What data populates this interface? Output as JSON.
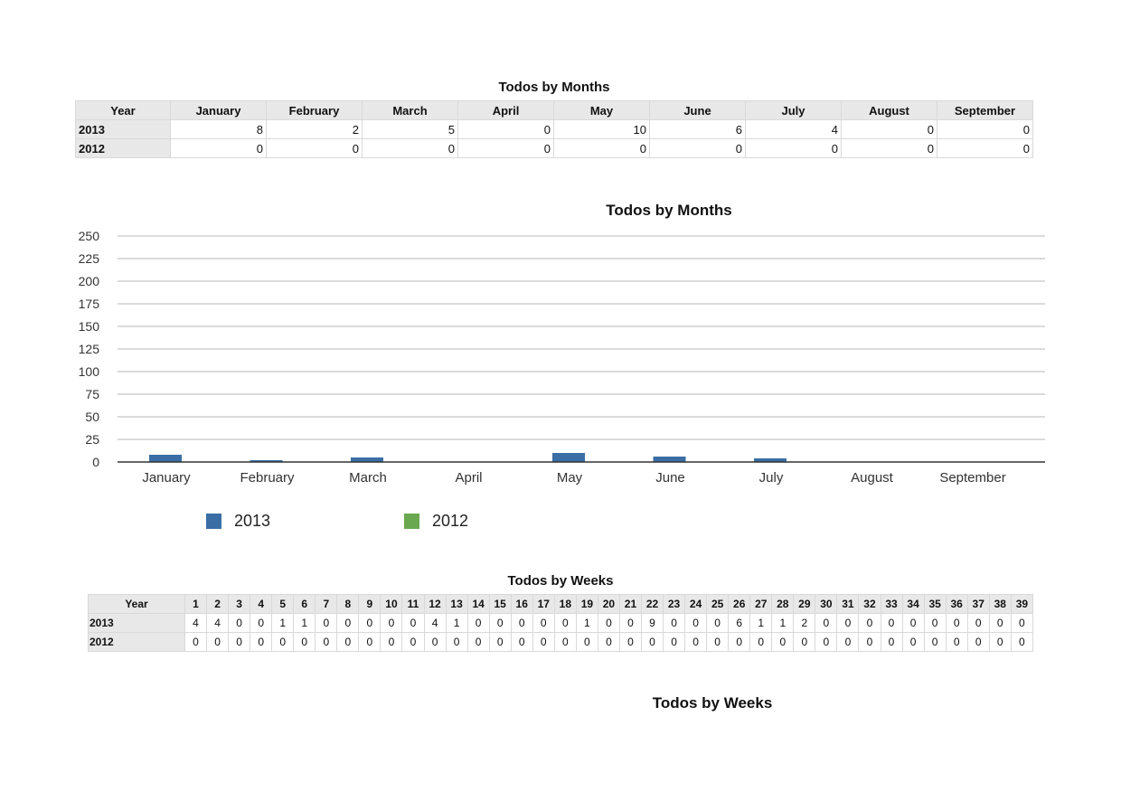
{
  "months_table": {
    "title": "Todos by Months",
    "header_label": "Year",
    "columns": [
      "January",
      "February",
      "March",
      "April",
      "May",
      "June",
      "July",
      "August",
      "September"
    ],
    "rows": [
      {
        "year": "2013",
        "values": [
          "8",
          "2",
          "5",
          "0",
          "10",
          "6",
          "4",
          "0",
          "0"
        ]
      },
      {
        "year": "2012",
        "values": [
          "0",
          "0",
          "0",
          "0",
          "0",
          "0",
          "0",
          "0",
          "0"
        ]
      }
    ]
  },
  "chart_data": {
    "type": "bar",
    "title": "Todos by Months",
    "categories": [
      "January",
      "February",
      "March",
      "April",
      "May",
      "June",
      "July",
      "August",
      "September"
    ],
    "clipped_next_category": "N",
    "series": [
      {
        "name": "2013",
        "color": "#3a6ea5",
        "values": [
          8,
          2,
          5,
          0,
          10,
          6,
          4,
          0,
          0
        ]
      },
      {
        "name": "2012",
        "color": "#6aa84f",
        "values": [
          0,
          0,
          0,
          0,
          0,
          0,
          0,
          0,
          0
        ]
      }
    ],
    "yticks": [
      "0",
      "25",
      "50",
      "75",
      "100",
      "125",
      "150",
      "175",
      "200",
      "225",
      "250"
    ],
    "ylim": [
      0,
      250
    ],
    "grid": true,
    "legend_position": "bottom-left"
  },
  "weeks_table": {
    "title": "Todos by Weeks",
    "header_label": "Year",
    "columns": [
      "1",
      "2",
      "3",
      "4",
      "5",
      "6",
      "7",
      "8",
      "9",
      "10",
      "11",
      "12",
      "13",
      "14",
      "15",
      "16",
      "17",
      "18",
      "19",
      "20",
      "21",
      "22",
      "23",
      "24",
      "25",
      "26",
      "27",
      "28",
      "29",
      "30",
      "31",
      "32",
      "33",
      "34",
      "35",
      "36",
      "37",
      "38",
      "39"
    ],
    "rows": [
      {
        "year": "2013",
        "values": [
          "4",
          "4",
          "0",
          "0",
          "1",
          "1",
          "0",
          "0",
          "0",
          "0",
          "0",
          "4",
          "1",
          "0",
          "0",
          "0",
          "0",
          "0",
          "1",
          "0",
          "0",
          "9",
          "0",
          "0",
          "0",
          "6",
          "1",
          "1",
          "2",
          "0",
          "0",
          "0",
          "0",
          "0",
          "0",
          "0",
          "0",
          "0",
          "0"
        ]
      },
      {
        "year": "2012",
        "values": [
          "0",
          "0",
          "0",
          "0",
          "0",
          "0",
          "0",
          "0",
          "0",
          "0",
          "0",
          "0",
          "0",
          "0",
          "0",
          "0",
          "0",
          "0",
          "0",
          "0",
          "0",
          "0",
          "0",
          "0",
          "0",
          "0",
          "0",
          "0",
          "0",
          "0",
          "0",
          "0",
          "0",
          "0",
          "0",
          "0",
          "0",
          "0",
          "0"
        ]
      }
    ]
  },
  "weeks_chart": {
    "title": "Todos by Weeks"
  }
}
